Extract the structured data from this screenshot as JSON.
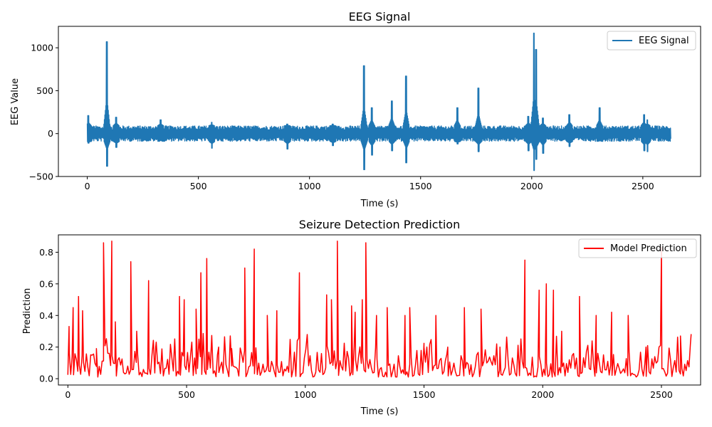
{
  "chart_data": [
    {
      "type": "line",
      "title": "EEG Signal",
      "xlabel": "Time (s)",
      "ylabel": "EEG Value",
      "xlim": [
        -130,
        2760
      ],
      "ylim": [
        -500,
        1250
      ],
      "xticks": [
        0,
        500,
        1000,
        1500,
        2000,
        2500
      ],
      "yticks": [
        -500,
        0,
        500,
        1000
      ],
      "ytick_labels": [
        "−500",
        "0",
        "500",
        "1000"
      ],
      "legend": "top-right",
      "grid": false,
      "series": [
        {
          "name": "EEG Signal",
          "color": "#1f77b4",
          "x_range": [
            0,
            2625
          ],
          "noise_amplitude": 90,
          "spikes": [
            {
              "x": 5,
              "min": -110,
              "max": 210
            },
            {
              "x": 88,
              "min": -380,
              "max": 1070
            },
            {
              "x": 130,
              "min": -160,
              "max": 190
            },
            {
              "x": 330,
              "min": -80,
              "max": 160
            },
            {
              "x": 560,
              "min": -170,
              "max": 130
            },
            {
              "x": 900,
              "min": -180,
              "max": 110
            },
            {
              "x": 1105,
              "min": -140,
              "max": 110
            },
            {
              "x": 1245,
              "min": -420,
              "max": 790
            },
            {
              "x": 1280,
              "min": -250,
              "max": 300
            },
            {
              "x": 1370,
              "min": -200,
              "max": 380
            },
            {
              "x": 1435,
              "min": -340,
              "max": 670
            },
            {
              "x": 1665,
              "min": -120,
              "max": 300
            },
            {
              "x": 1760,
              "min": -210,
              "max": 530
            },
            {
              "x": 1985,
              "min": -200,
              "max": 200
            },
            {
              "x": 2010,
              "min": -430,
              "max": 1170
            },
            {
              "x": 2020,
              "min": -300,
              "max": 980
            },
            {
              "x": 2050,
              "min": -230,
              "max": 180
            },
            {
              "x": 2170,
              "min": -150,
              "max": 220
            },
            {
              "x": 2305,
              "min": -80,
              "max": 300
            },
            {
              "x": 2505,
              "min": -200,
              "max": 220
            },
            {
              "x": 2520,
              "min": -210,
              "max": 160
            }
          ]
        }
      ]
    },
    {
      "type": "line",
      "title": "Seizure Detection Prediction",
      "xlabel": "Time (s)",
      "ylabel": "Prediction",
      "xlim": [
        -40,
        2665
      ],
      "ylim": [
        -0.04,
        0.91
      ],
      "xticks": [
        0,
        500,
        1000,
        1500,
        2000,
        2500
      ],
      "yticks": [
        0.0,
        0.2,
        0.4,
        0.6,
        0.8
      ],
      "ytick_labels": [
        "0.0",
        "0.2",
        "0.4",
        "0.6",
        "0.8"
      ],
      "legend": "top-right",
      "grid": false,
      "series": [
        {
          "name": "Model Prediction",
          "color": "#ff0000",
          "x_range": [
            0,
            2625
          ],
          "baseline_max": 0.3,
          "peaks": [
            [
              5,
              0.33
            ],
            [
              22,
              0.45
            ],
            [
              45,
              0.52
            ],
            [
              62,
              0.43
            ],
            [
              120,
              0.19
            ],
            [
              150,
              0.86
            ],
            [
              185,
              0.87
            ],
            [
              200,
              0.36
            ],
            [
              265,
              0.74
            ],
            [
              290,
              0.3
            ],
            [
              340,
              0.62
            ],
            [
              370,
              0.2
            ],
            [
              470,
              0.52
            ],
            [
              490,
              0.5
            ],
            [
              540,
              0.44
            ],
            [
              560,
              0.67
            ],
            [
              585,
              0.76
            ],
            [
              635,
              0.2
            ],
            [
              690,
              0.19
            ],
            [
              745,
              0.7
            ],
            [
              785,
              0.82
            ],
            [
              840,
              0.4
            ],
            [
              880,
              0.43
            ],
            [
              975,
              0.67
            ],
            [
              1090,
              0.53
            ],
            [
              1110,
              0.5
            ],
            [
              1135,
              0.87
            ],
            [
              1195,
              0.46
            ],
            [
              1210,
              0.42
            ],
            [
              1240,
              0.5
            ],
            [
              1255,
              0.86
            ],
            [
              1300,
              0.4
            ],
            [
              1345,
              0.45
            ],
            [
              1420,
              0.4
            ],
            [
              1440,
              0.45
            ],
            [
              1500,
              0.2
            ],
            [
              1550,
              0.4
            ],
            [
              1600,
              0.2
            ],
            [
              1670,
              0.45
            ],
            [
              1740,
              0.44
            ],
            [
              1820,
              0.2
            ],
            [
              1925,
              0.75
            ],
            [
              1985,
              0.56
            ],
            [
              2015,
              0.6
            ],
            [
              2045,
              0.56
            ],
            [
              2080,
              0.3
            ],
            [
              2155,
              0.52
            ],
            [
              2225,
              0.4
            ],
            [
              2290,
              0.42
            ],
            [
              2360,
              0.4
            ],
            [
              2435,
              0.2
            ],
            [
              2500,
              0.83
            ],
            [
              2580,
              0.27
            ],
            [
              2625,
              0.28
            ]
          ]
        }
      ]
    }
  ]
}
